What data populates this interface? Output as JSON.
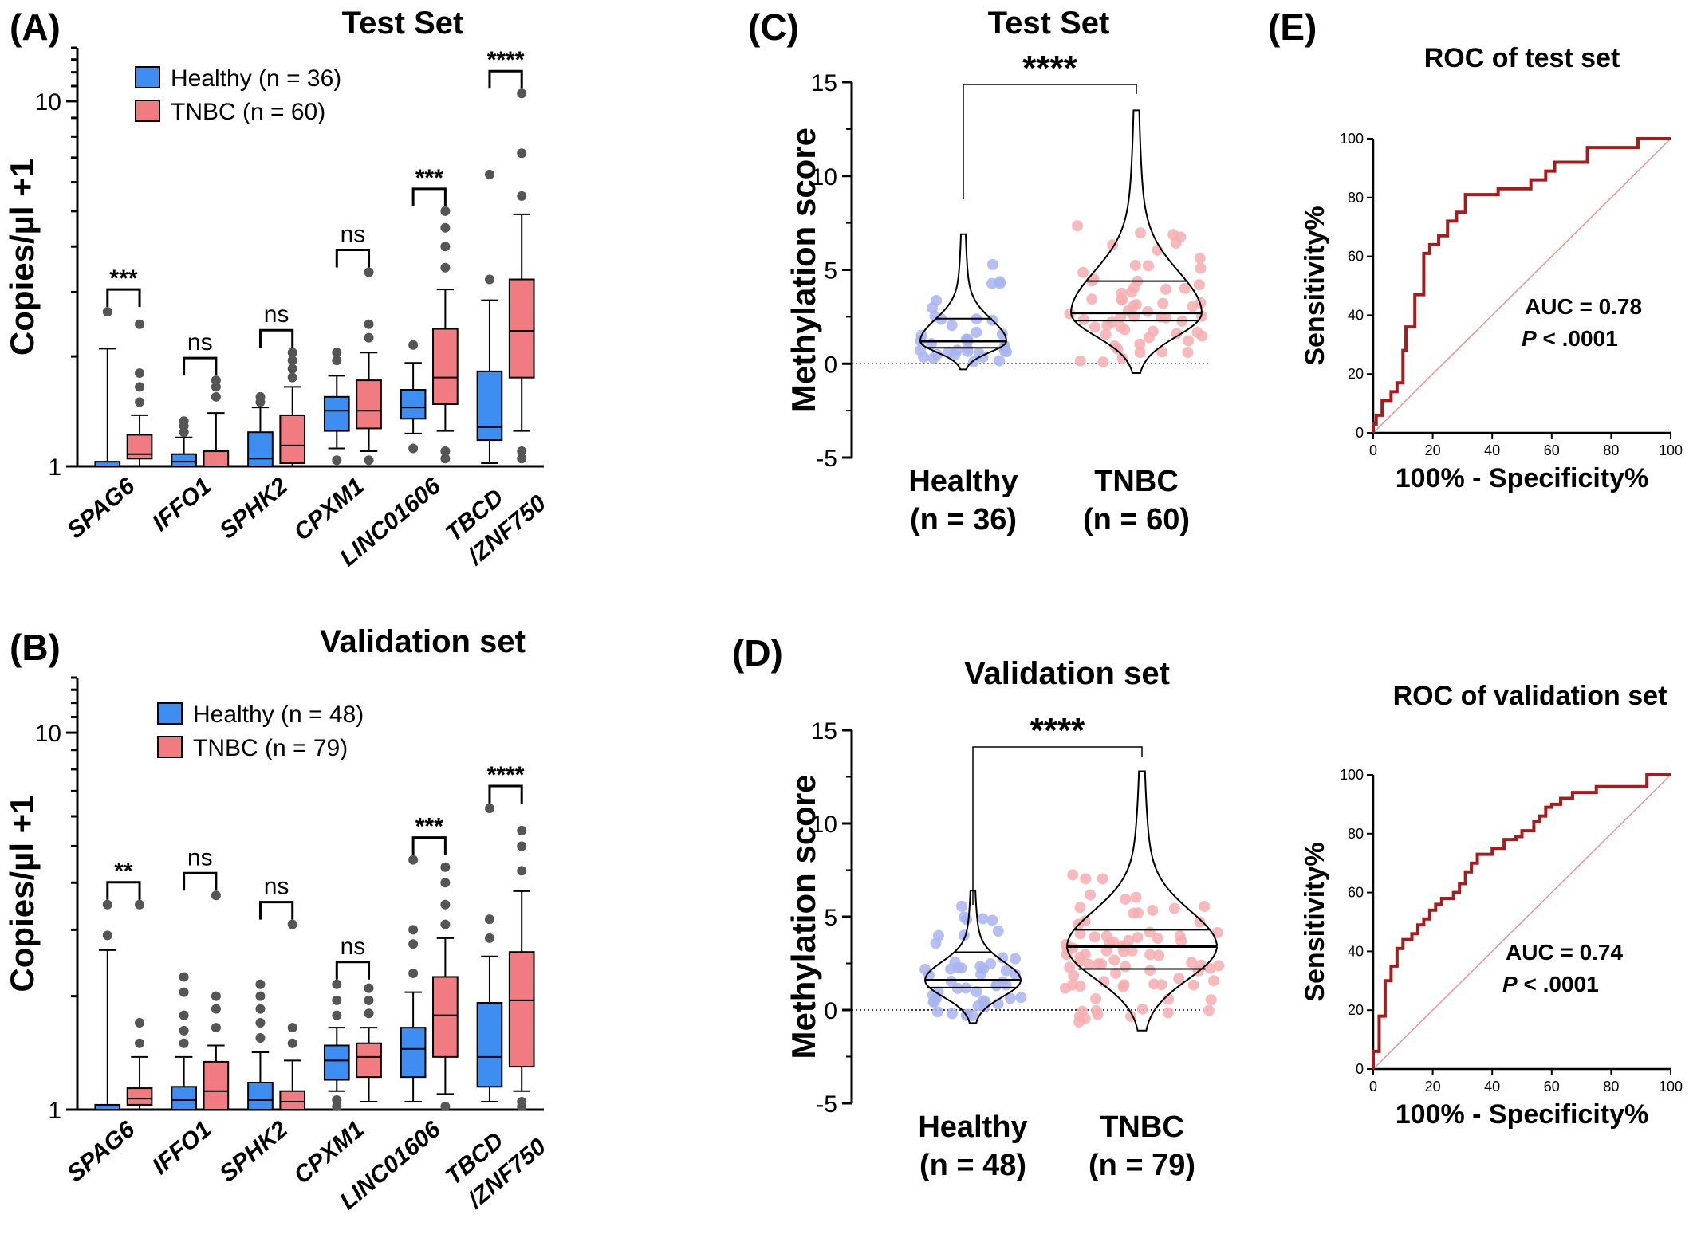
{
  "colors": {
    "healthy": "#3d8ef0",
    "tnbc": "#f07b80",
    "outlier": "#555555",
    "healthy_dot": "#a8b4f0",
    "tnbc_dot": "#f6aeb0",
    "roc_line": "#a61c1c",
    "diag": "#f09090"
  },
  "panels": {
    "A": {
      "letter": "(A)",
      "title": "Test Set"
    },
    "B": {
      "letter": "(B)",
      "title": "Validation set"
    },
    "C": {
      "letter": "(C)",
      "title": "Test Set"
    },
    "D": {
      "letter": "(D)",
      "title": "Validation set"
    },
    "E": {
      "letter": "(E)"
    }
  },
  "chart_data": [
    {
      "id": "A",
      "type": "box",
      "title": "Test Set",
      "ylabel": "Copies/µl +1",
      "yscale": "log",
      "ylim": [
        1,
        14
      ],
      "yticks": [
        "1",
        "10"
      ],
      "legend": [
        "Healthy (n = 36)",
        "TNBC   (n = 60)"
      ],
      "legend_position": "top-left",
      "categories": [
        "SPAG6",
        "IFFO1",
        "SPHK2",
        "CPXM1",
        "LINC01606",
        "TBCD",
        "/ZNF750"
      ],
      "category_lines": [
        [
          "SPAG6"
        ],
        [
          "IFFO1"
        ],
        [
          "SPHK2"
        ],
        [
          "CPXM1"
        ],
        [
          "LINC01606"
        ],
        [
          "TBCD",
          "/ZNF750"
        ]
      ],
      "significance": [
        "***",
        "ns",
        "ns",
        "ns",
        "***",
        "****"
      ],
      "series": [
        {
          "name": "Healthy",
          "boxes": [
            {
              "min": 1,
              "q1": 1,
              "median": 1,
              "q3": 1.03,
              "max": 2.1,
              "outliers": [
                2.65
              ]
            },
            {
              "min": 1,
              "q1": 1,
              "median": 1.03,
              "q3": 1.08,
              "max": 1.2,
              "outliers": [
                1.24,
                1.29,
                1.33
              ]
            },
            {
              "min": 1,
              "q1": 1,
              "median": 1.05,
              "q3": 1.24,
              "max": 1.45,
              "outliers": [
                1.5,
                1.55
              ]
            },
            {
              "min": 1.12,
              "q1": 1.25,
              "median": 1.42,
              "q3": 1.55,
              "max": 1.77,
              "outliers": [
                1.95,
                2.05,
                1.04
              ]
            },
            {
              "min": 1.23,
              "q1": 1.35,
              "median": 1.45,
              "q3": 1.62,
              "max": 1.92,
              "outliers": [
                2.15,
                1.12
              ]
            },
            {
              "min": 1.02,
              "q1": 1.18,
              "median": 1.28,
              "q3": 1.82,
              "max": 2.85,
              "outliers": [
                3.25,
                6.3
              ]
            }
          ]
        },
        {
          "name": "TNBC",
          "boxes": [
            {
              "min": 1,
              "q1": 1.05,
              "median": 1.08,
              "q3": 1.22,
              "max": 1.38,
              "outliers": [
                1.5,
                1.65,
                1.8,
                2.45
              ]
            },
            {
              "min": 1,
              "q1": 1,
              "median": 1,
              "q3": 1.1,
              "max": 1.4,
              "outliers": [
                1.55,
                1.65,
                1.72
              ]
            },
            {
              "min": 1,
              "q1": 1.02,
              "median": 1.14,
              "q3": 1.38,
              "max": 1.65,
              "outliers": [
                1.75,
                1.85,
                1.95,
                2.05
              ]
            },
            {
              "min": 1.1,
              "q1": 1.27,
              "median": 1.42,
              "q3": 1.72,
              "max": 2.05,
              "outliers": [
                2.25,
                2.45,
                3.4,
                1.04
              ]
            },
            {
              "min": 1.25,
              "q1": 1.48,
              "median": 1.75,
              "q3": 2.38,
              "max": 3.05,
              "outliers": [
                3.5,
                4.0,
                4.5,
                5.0,
                1.05,
                1.1
              ]
            },
            {
              "min": 1.25,
              "q1": 1.75,
              "median": 2.35,
              "q3": 3.25,
              "max": 4.9,
              "outliers": [
                5.5,
                7.2,
                10.5,
                1.05,
                1.1
              ]
            }
          ]
        }
      ]
    },
    {
      "id": "B",
      "type": "box",
      "title": "Validation set",
      "ylabel": "Copies/µl +1",
      "yscale": "log",
      "ylim": [
        1,
        14
      ],
      "yticks": [
        "1",
        "10"
      ],
      "legend": [
        "Healthy (n = 48)",
        "TNBC   (n = 79)"
      ],
      "legend_position": "top-left",
      "categories": [
        "SPAG6",
        "IFFO1",
        "SPHK2",
        "CPXM1",
        "LINC01606",
        "TBCD",
        "/ZNF750"
      ],
      "category_lines": [
        [
          "SPAG6"
        ],
        [
          "IFFO1"
        ],
        [
          "SPHK2"
        ],
        [
          "CPXM1"
        ],
        [
          "LINC01606"
        ],
        [
          "TBCD",
          "/ZNF750"
        ]
      ],
      "significance": [
        "**",
        "ns",
        "ns",
        "ns",
        "***",
        "****"
      ],
      "series": [
        {
          "name": "Healthy",
          "boxes": [
            {
              "min": 1,
              "q1": 1,
              "median": 1,
              "q3": 1.03,
              "max": 2.65,
              "outliers": [
                2.9,
                3.5
              ]
            },
            {
              "min": 1,
              "q1": 1,
              "median": 1.06,
              "q3": 1.15,
              "max": 1.38,
              "outliers": [
                1.5,
                1.62,
                1.78,
                2.05,
                2.25
              ]
            },
            {
              "min": 1,
              "q1": 1,
              "median": 1.06,
              "q3": 1.18,
              "max": 1.42,
              "outliers": [
                1.55,
                1.7,
                1.85,
                2.0,
                2.15
              ]
            },
            {
              "min": 1.12,
              "q1": 1.2,
              "median": 1.35,
              "q3": 1.48,
              "max": 1.65,
              "outliers": [
                1.78,
                1.95,
                2.15,
                1.06,
                1.02
              ]
            },
            {
              "min": 1.05,
              "q1": 1.22,
              "median": 1.45,
              "q3": 1.65,
              "max": 2.05,
              "outliers": [
                2.3,
                2.75,
                3.0,
                4.6
              ]
            },
            {
              "min": 1.05,
              "q1": 1.15,
              "median": 1.38,
              "q3": 1.92,
              "max": 2.55,
              "outliers": [
                2.85,
                3.2,
                6.3
              ]
            }
          ]
        },
        {
          "name": "TNBC",
          "boxes": [
            {
              "min": 1,
              "q1": 1.03,
              "median": 1.07,
              "q3": 1.14,
              "max": 1.38,
              "outliers": [
                1.5,
                1.7,
                3.5
              ]
            },
            {
              "min": 1,
              "q1": 1,
              "median": 1.12,
              "q3": 1.34,
              "max": 1.48,
              "outliers": [
                1.65,
                1.85,
                2.0,
                3.7
              ]
            },
            {
              "min": 1,
              "q1": 1,
              "median": 1.05,
              "q3": 1.12,
              "max": 1.35,
              "outliers": [
                1.5,
                1.65,
                3.1
              ]
            },
            {
              "min": 1.05,
              "q1": 1.22,
              "median": 1.38,
              "q3": 1.5,
              "max": 1.65,
              "outliers": [
                1.8,
                1.95,
                2.1
              ]
            },
            {
              "min": 1.1,
              "q1": 1.38,
              "median": 1.78,
              "q3": 2.25,
              "max": 2.85,
              "outliers": [
                3.1,
                3.5,
                4.0,
                4.4,
                1.02
              ]
            },
            {
              "min": 1.12,
              "q1": 1.3,
              "median": 1.95,
              "q3": 2.62,
              "max": 3.8,
              "outliers": [
                4.3,
                5.0,
                5.5,
                1.05,
                1.02
              ]
            }
          ]
        }
      ]
    },
    {
      "id": "C",
      "type": "violin",
      "title": "Test Set",
      "ylabel": "Methylation score",
      "ylim": [
        -5,
        15
      ],
      "yticks": [
        "-5",
        "0",
        "5",
        "10",
        "15"
      ],
      "groups": [
        {
          "name": "Healthy",
          "label": [
            "Healthy",
            "(n = 36)"
          ],
          "median": 1.2,
          "q1": 0.85,
          "q3": 2.4,
          "min": -0.3,
          "max": 6.9
        },
        {
          "name": "TNBC",
          "label": [
            "TNBC",
            "(n = 60)"
          ],
          "median": 2.7,
          "q1": 2.3,
          "q3": 4.4,
          "min": -0.5,
          "max": 13.5
        }
      ],
      "significance": "****"
    },
    {
      "id": "D",
      "type": "violin",
      "title": "Validation set",
      "ylabel": "Methylation score",
      "ylim": [
        -5,
        15
      ],
      "yticks": [
        "-5",
        "0",
        "5",
        "10",
        "15"
      ],
      "groups": [
        {
          "name": "Healthy",
          "label": [
            "Healthy",
            "(n = 48)"
          ],
          "median": 1.6,
          "q1": 1.2,
          "q3": 3.1,
          "min": -0.7,
          "max": 6.4
        },
        {
          "name": "TNBC",
          "label": [
            "TNBC",
            "(n = 79)"
          ],
          "median": 3.4,
          "q1": 2.2,
          "q3": 4.3,
          "min": -1.1,
          "max": 12.8
        }
      ],
      "significance": "****"
    },
    {
      "id": "E-test",
      "type": "line",
      "title": "ROC of test set",
      "xlabel": "100% - Specificity%",
      "ylabel": "Sensitivity%",
      "xlim": [
        0,
        100
      ],
      "ylim": [
        0,
        100
      ],
      "ticks": [
        "0",
        "20",
        "40",
        "60",
        "80",
        "100"
      ],
      "annotation": {
        "auc": "AUC = 0.78",
        "p_italic": "P",
        "p_rest": " < .0001"
      },
      "x": [
        0,
        0,
        1,
        1,
        3,
        3,
        6,
        6,
        8,
        8,
        10,
        10,
        11,
        11,
        14,
        14,
        17,
        17,
        19,
        19,
        22,
        22,
        25,
        25,
        28,
        28,
        31,
        31,
        36,
        36,
        42,
        42,
        47,
        47,
        53,
        53,
        58,
        58,
        61,
        61,
        67,
        67,
        72,
        72,
        78,
        78,
        83,
        83,
        89,
        89,
        94,
        94,
        100
      ],
      "y": [
        0,
        3,
        3,
        6,
        6,
        11,
        11,
        14,
        14,
        17,
        17,
        28,
        28,
        36,
        36,
        47,
        47,
        61,
        61,
        64,
        64,
        67,
        67,
        72,
        72,
        75,
        75,
        81,
        81,
        81,
        81,
        83,
        83,
        83,
        83,
        86,
        86,
        89,
        89,
        92,
        92,
        92,
        92,
        97,
        97,
        97,
        97,
        97,
        97,
        100,
        100,
        100,
        100
      ]
    },
    {
      "id": "E-validation",
      "type": "line",
      "title": "ROC of validation set",
      "xlabel": "100% - Specificity%",
      "ylabel": "Sensitivity%",
      "xlim": [
        0,
        100
      ],
      "ylim": [
        0,
        100
      ],
      "ticks": [
        "0",
        "20",
        "40",
        "60",
        "80",
        "100"
      ],
      "annotation": {
        "auc": "AUC = 0.74",
        "p_italic": "P",
        "p_rest": " < .0001"
      },
      "x": [
        0,
        0,
        2,
        2,
        4,
        4,
        6,
        6,
        8,
        8,
        10,
        10,
        13,
        13,
        15,
        15,
        17,
        17,
        19,
        19,
        21,
        21,
        23,
        23,
        27,
        27,
        29,
        29,
        31,
        31,
        33,
        33,
        35,
        35,
        40,
        40,
        44,
        44,
        48,
        48,
        50,
        50,
        54,
        54,
        56,
        56,
        58,
        58,
        60,
        60,
        63,
        63,
        67,
        67,
        75,
        75,
        92,
        92,
        100
      ],
      "y": [
        0,
        6,
        6,
        18,
        18,
        30,
        30,
        35,
        35,
        41,
        41,
        44,
        44,
        46,
        46,
        49,
        49,
        51,
        51,
        54,
        54,
        56,
        56,
        58,
        58,
        60,
        60,
        63,
        63,
        67,
        67,
        70,
        70,
        73,
        73,
        75,
        75,
        78,
        78,
        79,
        79,
        81,
        81,
        84,
        84,
        86,
        86,
        89,
        89,
        90,
        90,
        92,
        92,
        94,
        94,
        96,
        96,
        100,
        100
      ]
    }
  ]
}
